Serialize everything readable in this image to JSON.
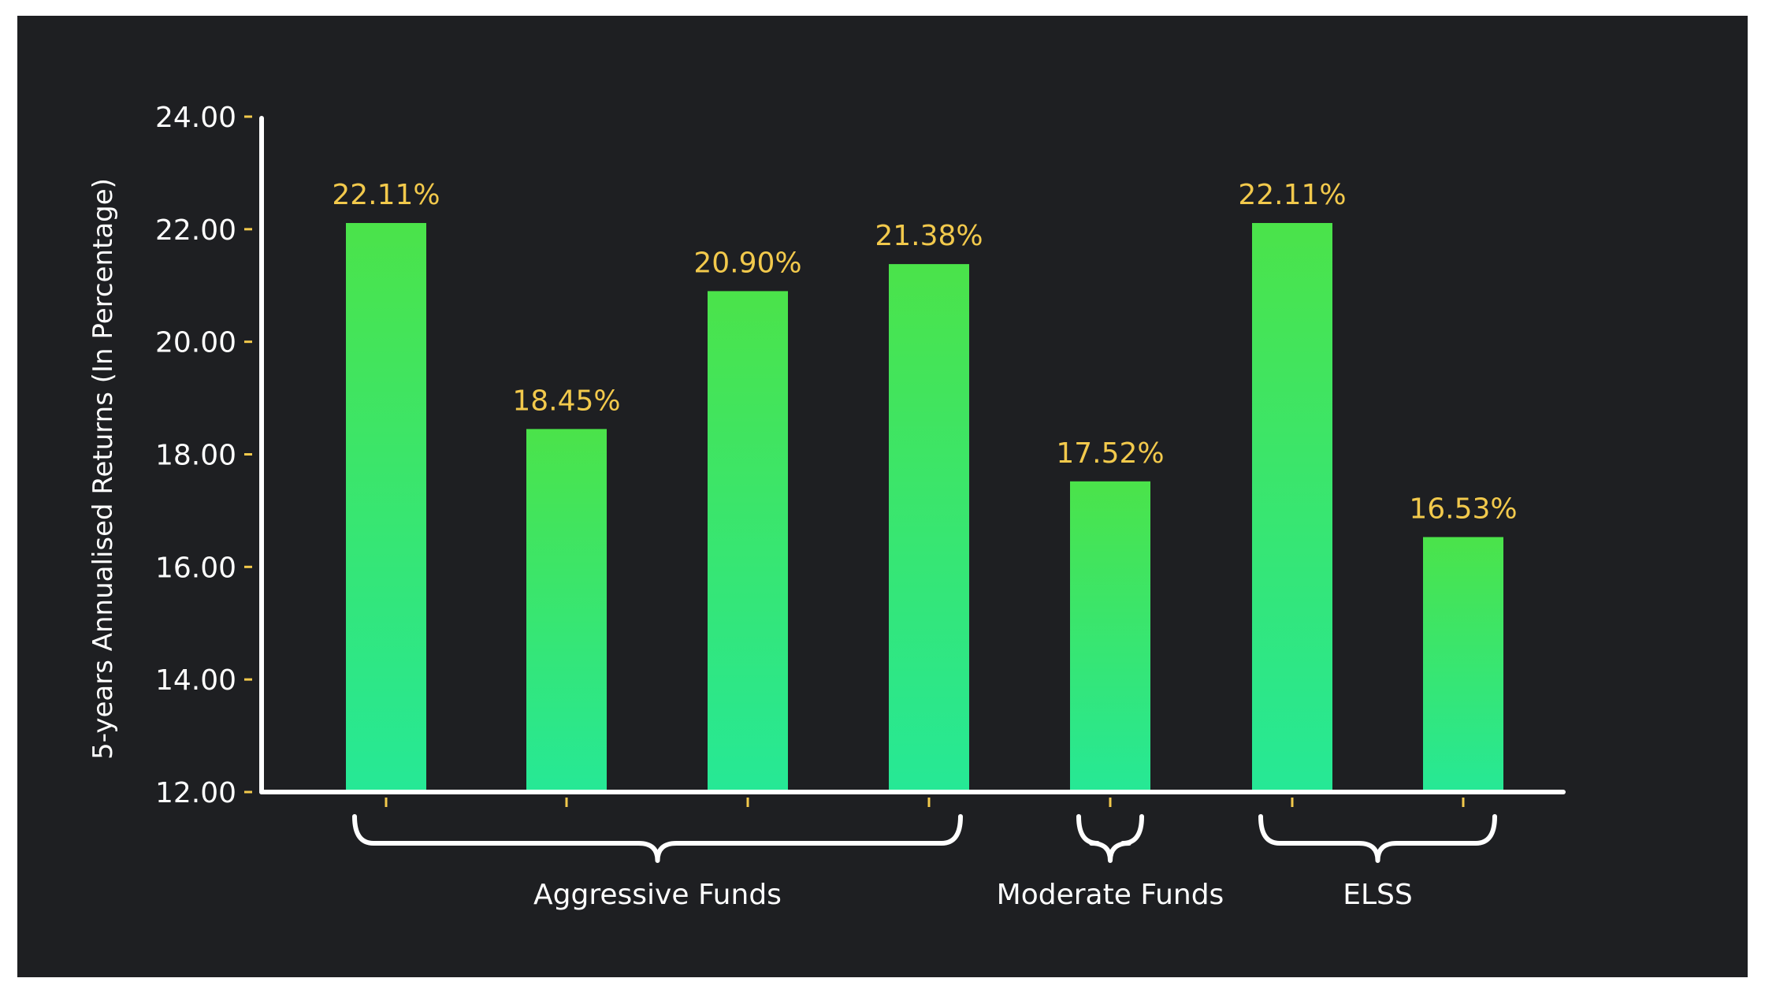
{
  "chart_data": {
    "type": "bar",
    "ylabel": "5-years Annualised Returns (In Percentage)",
    "ylim": [
      12,
      24
    ],
    "yticks": [
      "24.00",
      "22.00",
      "20.00",
      "18.00",
      "16.00",
      "14.00",
      "12.00"
    ],
    "values": [
      22.11,
      18.45,
      20.9,
      21.38,
      17.52,
      22.11,
      16.53
    ],
    "value_labels": [
      "22.11%",
      "18.45%",
      "20.90%",
      "21.38%",
      "17.52%",
      "22.11%",
      "16.53%"
    ],
    "groups": [
      {
        "label": "Aggressive Funds",
        "bars": [
          0,
          1,
          2,
          3
        ]
      },
      {
        "label": "Moderate Funds",
        "bars": [
          4
        ]
      },
      {
        "label": "ELSS",
        "bars": [
          5,
          6
        ]
      }
    ],
    "grid": false,
    "colors": {
      "background": "#1e1f22",
      "bar_top": "#4be34a",
      "bar_bottom": "#26e896",
      "value_label": "#f2c94c",
      "tick_mark": "#f2c94c",
      "axis": "#ffffff",
      "text": "#ffffff"
    }
  }
}
